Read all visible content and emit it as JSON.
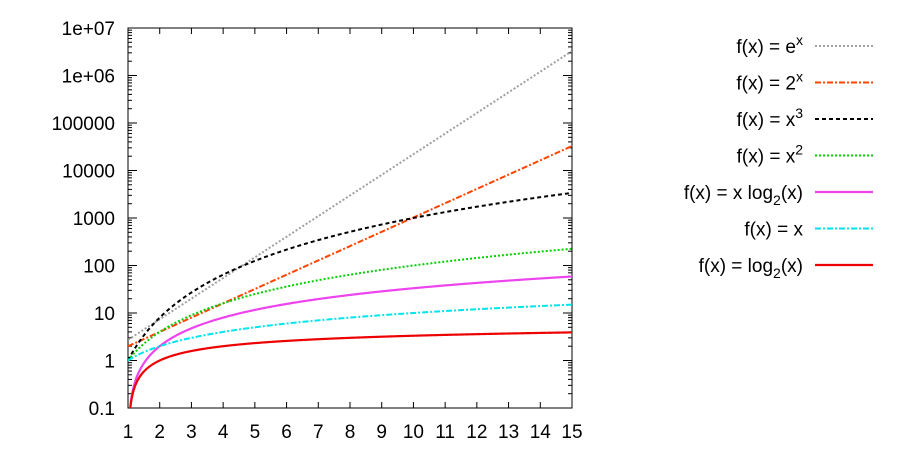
{
  "chart_data": {
    "type": "line",
    "title": "",
    "xlabel": "",
    "ylabel": "",
    "x_scale": "linear",
    "y_scale": "log",
    "xlim": [
      1,
      15
    ],
    "ylim": [
      0.1,
      10000000
    ],
    "grid": false,
    "legend_position": "right",
    "x_ticks": [
      1,
      2,
      3,
      4,
      5,
      6,
      7,
      8,
      9,
      10,
      11,
      12,
      13,
      14,
      15
    ],
    "x_tick_labels": [
      "1",
      "2",
      "3",
      "4",
      "5",
      "6",
      "7",
      "8",
      "9",
      "10",
      "11",
      "12",
      "13",
      "14",
      "15"
    ],
    "y_ticks": [
      0.1,
      1,
      10,
      100,
      1000,
      10000,
      100000,
      1000000,
      10000000
    ],
    "y_tick_labels": [
      "0.1",
      "1",
      "10",
      "100",
      "1000",
      "10000",
      "100000",
      "1e+06",
      "1e+07"
    ],
    "series": [
      {
        "name": "f(x) = eˣ",
        "legend": {
          "main": "f(x) = e",
          "sup": "x",
          "sub": "",
          "tail": ""
        },
        "formula": "exp",
        "color": "#a0a0a0",
        "dash": "dotted",
        "x": [
          1,
          2,
          3,
          4,
          5,
          6,
          7,
          8,
          9,
          10,
          11,
          12,
          13,
          14,
          15
        ],
        "y": [
          2.718,
          7.389,
          20.09,
          54.6,
          148.4,
          403.4,
          1096.6,
          2981,
          8103,
          22026,
          59874,
          162755,
          442413,
          1202604,
          3269017
        ]
      },
      {
        "name": "f(x) = 2ˣ",
        "legend": {
          "main": "f(x) = 2",
          "sup": "x",
          "sub": "",
          "tail": ""
        },
        "formula": "pow2",
        "color": "#ff4500",
        "dash": "dashdot",
        "x": [
          1,
          2,
          3,
          4,
          5,
          6,
          7,
          8,
          9,
          10,
          11,
          12,
          13,
          14,
          15
        ],
        "y": [
          2,
          4,
          8,
          16,
          32,
          64,
          128,
          256,
          512,
          1024,
          2048,
          4096,
          8192,
          16384,
          32768
        ]
      },
      {
        "name": "f(x) = x³",
        "legend": {
          "main": "f(x) = x",
          "sup": "3",
          "sub": "",
          "tail": ""
        },
        "formula": "cube",
        "color": "#000000",
        "dash": "dashed",
        "x": [
          1,
          2,
          3,
          4,
          5,
          6,
          7,
          8,
          9,
          10,
          11,
          12,
          13,
          14,
          15
        ],
        "y": [
          1,
          8,
          27,
          64,
          125,
          216,
          343,
          512,
          729,
          1000,
          1331,
          1728,
          2197,
          2744,
          3375
        ]
      },
      {
        "name": "f(x) = x²",
        "legend": {
          "main": "f(x) = x",
          "sup": "2",
          "sub": "",
          "tail": ""
        },
        "formula": "square",
        "color": "#00d000",
        "dash": "dotted",
        "x": [
          1,
          2,
          3,
          4,
          5,
          6,
          7,
          8,
          9,
          10,
          11,
          12,
          13,
          14,
          15
        ],
        "y": [
          1,
          4,
          9,
          16,
          25,
          36,
          49,
          64,
          81,
          100,
          121,
          144,
          169,
          196,
          225
        ]
      },
      {
        "name": "f(x) = x log₂(x)",
        "legend": {
          "main": "f(x) = x log",
          "sup": "",
          "sub": "2",
          "tail": "(x)"
        },
        "formula": "xlog2",
        "color": "#ee44ee",
        "dash": "solid",
        "x": [
          1,
          2,
          3,
          4,
          5,
          6,
          7,
          8,
          9,
          10,
          11,
          12,
          13,
          14,
          15
        ],
        "y": [
          0,
          2,
          4.75,
          8,
          11.61,
          15.51,
          19.65,
          24,
          28.53,
          33.22,
          38.05,
          43.02,
          48.11,
          53.3,
          58.6
        ]
      },
      {
        "name": "f(x) = x",
        "legend": {
          "main": "f(x) = x",
          "sup": "",
          "sub": "",
          "tail": ""
        },
        "formula": "linear",
        "color": "#00e5ee",
        "dash": "dashdot",
        "x": [
          1,
          2,
          3,
          4,
          5,
          6,
          7,
          8,
          9,
          10,
          11,
          12,
          13,
          14,
          15
        ],
        "y": [
          1,
          2,
          3,
          4,
          5,
          6,
          7,
          8,
          9,
          10,
          11,
          12,
          13,
          14,
          15
        ]
      },
      {
        "name": "f(x) = log₂(x)",
        "legend": {
          "main": "f(x) = log",
          "sup": "",
          "sub": "2",
          "tail": "(x)"
        },
        "formula": "log2",
        "color": "#ee0000",
        "dash": "solid",
        "x": [
          1,
          2,
          3,
          4,
          5,
          6,
          7,
          8,
          9,
          10,
          11,
          12,
          13,
          14,
          15
        ],
        "y": [
          0,
          1,
          1.585,
          2,
          2.322,
          2.585,
          2.807,
          3,
          3.17,
          3.322,
          3.459,
          3.585,
          3.7,
          3.807,
          3.907
        ]
      }
    ]
  }
}
